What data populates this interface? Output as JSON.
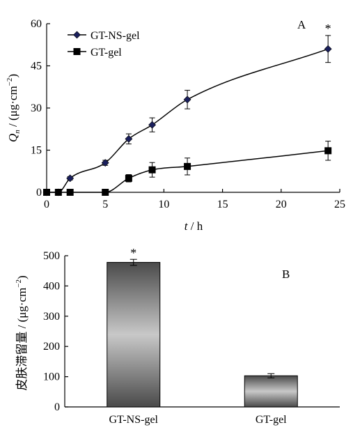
{
  "chart_data": [
    {
      "type": "line",
      "panel_label": "A",
      "x": [
        0,
        1,
        2,
        5,
        7,
        9,
        12,
        24
      ],
      "series": [
        {
          "name": "GT-NS-gel",
          "marker": "diamond",
          "color": "#1a1f5c",
          "x": [
            0,
            1,
            2,
            5,
            7,
            9,
            12,
            24
          ],
          "values": [
            0,
            0,
            5,
            10.5,
            19,
            24,
            33,
            51
          ],
          "errors": [
            0,
            0,
            0.6,
            0.9,
            1.8,
            2.5,
            3.3,
            4.8
          ]
        },
        {
          "name": "GT-gel",
          "marker": "square",
          "color": "#000000",
          "x": [
            0,
            1,
            2,
            5,
            7,
            9,
            12,
            24
          ],
          "values": [
            0,
            0,
            0,
            0,
            5,
            8,
            9.2,
            14.8
          ],
          "errors": [
            0,
            0,
            0,
            0,
            1.3,
            2.6,
            3,
            3.4
          ]
        }
      ],
      "annotations": [
        {
          "text": "*",
          "x": 24,
          "series": "GT-NS-gel"
        }
      ],
      "ylabel_italic": "Q",
      "ylabel_sub": "n",
      "ylabel_unit_prefix": " / (μg·cm",
      "ylabel_unit_sup": "−2",
      "ylabel_unit_suffix": ")",
      "xlabel_italic": "t",
      "xlabel_unit": " / h",
      "xlim": [
        0,
        25
      ],
      "ylim": [
        0,
        60
      ],
      "xticks": [
        0,
        5,
        10,
        15,
        20,
        25
      ],
      "yticks": [
        0,
        15,
        30,
        45,
        60
      ],
      "legend_position": "top-left",
      "grid": false
    },
    {
      "type": "bar",
      "panel_label": "B",
      "categories": [
        "GT-NS-gel",
        "GT-gel"
      ],
      "values": [
        478,
        103
      ],
      "errors": [
        10,
        7
      ],
      "annotations": [
        {
          "text": "*",
          "category": "GT-NS-gel"
        }
      ],
      "ylabel_prefix": "皮肤滞留量 / (μg·cm",
      "ylabel_sup": "−2",
      "ylabel_suffix": ")",
      "ylim": [
        0,
        500
      ],
      "yticks": [
        0,
        100,
        200,
        300,
        400,
        500
      ],
      "bar_fill": "gradient gray (dark edges, light center)",
      "grid": false
    }
  ]
}
